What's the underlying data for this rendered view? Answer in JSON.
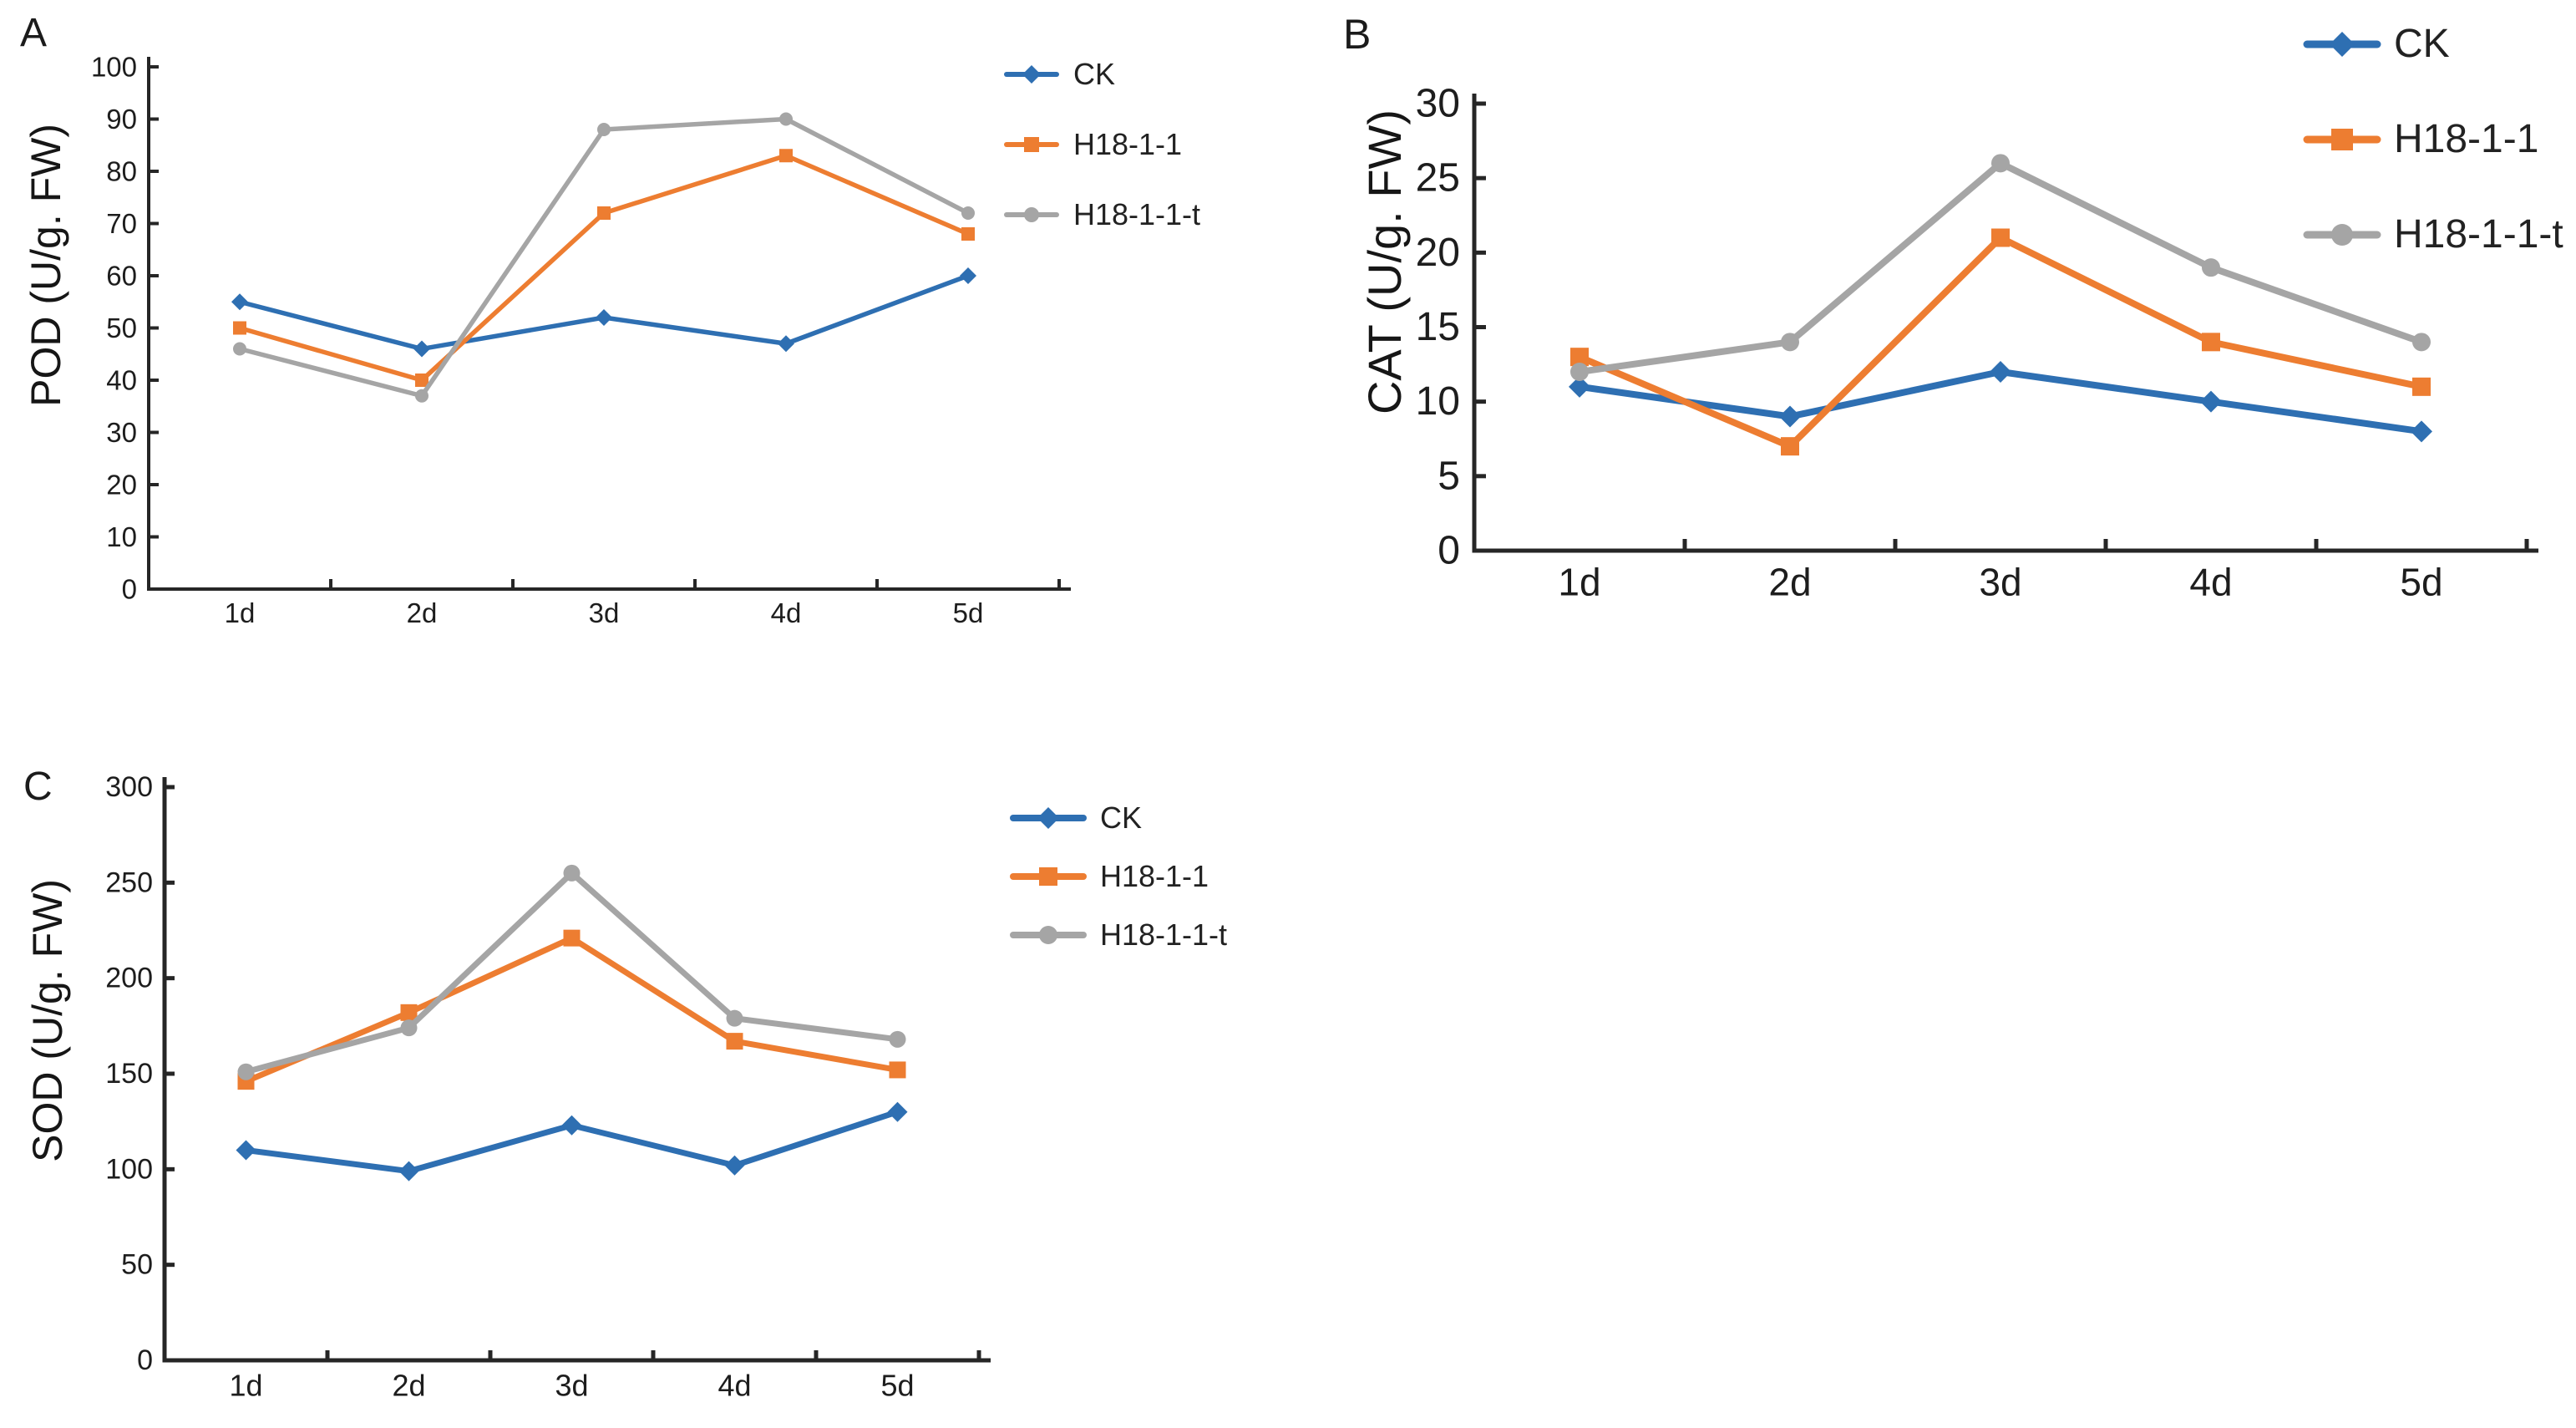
{
  "figure": {
    "background": "#ffffff",
    "text_color": "#222222",
    "axis_color": "#262626"
  },
  "palette": {
    "ck_blue": "#2E6FB2",
    "h18_orange": "#ED7D31",
    "h18t_gray": "#A5A5A5"
  },
  "chart_data": [
    {
      "type": "line",
      "panel_label": "A",
      "title": "",
      "xlabel": "",
      "ylabel": "POD (U/g. FW)",
      "categories": [
        "1d",
        "2d",
        "3d",
        "4d",
        "5d"
      ],
      "ylim": [
        0,
        100
      ],
      "ytick_step": 10,
      "yticks": [
        "0",
        "10",
        "20",
        "30",
        "40",
        "50",
        "60",
        "70",
        "80",
        "90",
        "100"
      ],
      "grid": false,
      "legend_position": "outside-upper-right",
      "series": [
        {
          "name": "CK",
          "color": "#2E6FB2",
          "marker": "diamond",
          "values": [
            55,
            46,
            52,
            47,
            60
          ]
        },
        {
          "name": "H18-1-1",
          "color": "#ED7D31",
          "marker": "square",
          "values": [
            50,
            40,
            72,
            83,
            68
          ]
        },
        {
          "name": "H18-1-1-t",
          "color": "#A5A5A5",
          "marker": "circle",
          "values": [
            46,
            37,
            88,
            90,
            72
          ]
        }
      ]
    },
    {
      "type": "line",
      "panel_label": "B",
      "title": "",
      "xlabel": "",
      "ylabel": "CAT (U/g. FW)",
      "categories": [
        "1d",
        "2d",
        "3d",
        "4d",
        "5d"
      ],
      "ylim": [
        0,
        30
      ],
      "ytick_step": 5,
      "yticks": [
        "0",
        "5",
        "10",
        "15",
        "20",
        "25",
        "30"
      ],
      "grid": false,
      "legend_position": "outside-upper-right",
      "series": [
        {
          "name": "CK",
          "color": "#2E6FB2",
          "marker": "diamond",
          "values": [
            11,
            9,
            12,
            10,
            8
          ]
        },
        {
          "name": "H18-1-1",
          "color": "#ED7D31",
          "marker": "square",
          "values": [
            13,
            7,
            21,
            14,
            11
          ]
        },
        {
          "name": "H18-1-1-t",
          "color": "#A5A5A5",
          "marker": "circle",
          "values": [
            12,
            14,
            26,
            19,
            14
          ]
        }
      ]
    },
    {
      "type": "line",
      "panel_label": "C",
      "title": "",
      "xlabel": "",
      "ylabel": "SOD (U/g. FW)",
      "categories": [
        "1d",
        "2d",
        "3d",
        "4d",
        "5d"
      ],
      "ylim": [
        0,
        300
      ],
      "ytick_step": 50,
      "yticks": [
        "0",
        "50",
        "100",
        "150",
        "200",
        "250",
        "300"
      ],
      "grid": false,
      "legend_position": "outside-upper-right",
      "series": [
        {
          "name": "CK",
          "color": "#2E6FB2",
          "marker": "diamond",
          "values": [
            110,
            99,
            123,
            102,
            130
          ]
        },
        {
          "name": "H18-1-1",
          "color": "#ED7D31",
          "marker": "square",
          "values": [
            146,
            182,
            221,
            167,
            152
          ]
        },
        {
          "name": "H18-1-1-t",
          "color": "#A5A5A5",
          "marker": "circle",
          "values": [
            151,
            174,
            255,
            179,
            168
          ]
        }
      ]
    }
  ]
}
